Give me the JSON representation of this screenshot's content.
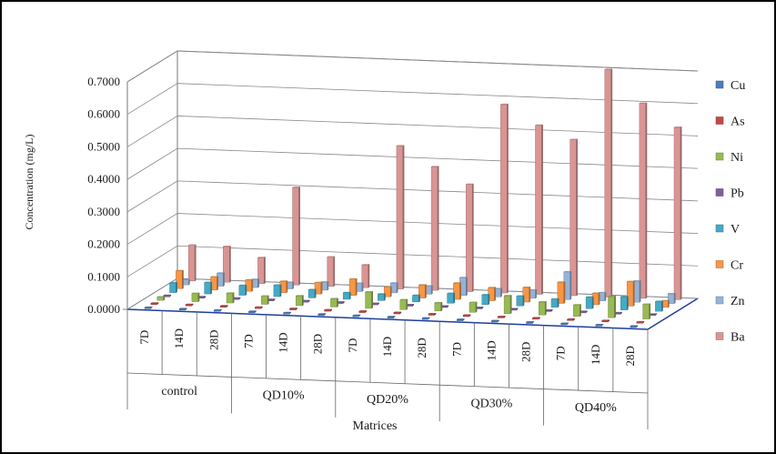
{
  "chart_data": {
    "type": "bar",
    "ylabel": "Concentration (mg/L)",
    "xlabel": "Matrices",
    "ylim": [
      0,
      0.7
    ],
    "y_ticks": [
      "0.0000",
      "0.1000",
      "0.2000",
      "0.3000",
      "0.4000",
      "0.5000",
      "0.6000",
      "0.7000"
    ],
    "groups": [
      "control",
      "QD10%",
      "QD20%",
      "QD30%",
      "QD40%"
    ],
    "categories": [
      "7D",
      "14D",
      "28D",
      "7D",
      "14D",
      "28D",
      "7D",
      "14D",
      "28D",
      "7D",
      "14D",
      "28D",
      "7D",
      "14D",
      "28D"
    ],
    "grid": true,
    "legend_position": "right",
    "series": [
      {
        "name": "Cu",
        "color": "#4a7ebb",
        "values": [
          0.002,
          0.002,
          0.002,
          0.002,
          0.002,
          0.002,
          0.002,
          0.002,
          0.002,
          0.002,
          0.002,
          0.002,
          0.002,
          0.002,
          0.002
        ]
      },
      {
        "name": "As",
        "color": "#be4b48",
        "values": [
          0.003,
          0.003,
          0.003,
          0.003,
          0.003,
          0.003,
          0.003,
          0.003,
          0.003,
          0.003,
          0.003,
          0.003,
          0.003,
          0.003,
          0.003
        ]
      },
      {
        "name": "Ni",
        "color": "#98b954",
        "values": [
          0.01,
          0.025,
          0.03,
          0.025,
          0.03,
          0.025,
          0.05,
          0.03,
          0.025,
          0.03,
          0.055,
          0.04,
          0.035,
          0.065,
          0.045
        ]
      },
      {
        "name": "Pb",
        "color": "#7d60a0",
        "values": [
          0.003,
          0.003,
          0.003,
          0.003,
          0.003,
          0.003,
          0.003,
          0.003,
          0.003,
          0.003,
          0.003,
          0.003,
          0.003,
          0.003,
          0.003
        ]
      },
      {
        "name": "V",
        "color": "#46aac5",
        "values": [
          0.03,
          0.035,
          0.03,
          0.035,
          0.025,
          0.02,
          0.02,
          0.02,
          0.03,
          0.03,
          0.03,
          0.025,
          0.035,
          0.04,
          0.03
        ]
      },
      {
        "name": "Cr",
        "color": "#f79646",
        "values": [
          0.055,
          0.04,
          0.035,
          0.035,
          0.035,
          0.05,
          0.03,
          0.04,
          0.05,
          0.04,
          0.045,
          0.065,
          0.035,
          0.075,
          0.02
        ]
      },
      {
        "name": "Zn",
        "color": "#95b3d7",
        "values": [
          0.015,
          0.04,
          0.025,
          0.02,
          0.025,
          0.025,
          0.03,
          0.025,
          0.055,
          0.025,
          0.025,
          0.085,
          0.025,
          0.065,
          0.03
        ]
      },
      {
        "name": "Ba",
        "color": "#d99594",
        "values": [
          0.11,
          0.11,
          0.08,
          0.3,
          0.09,
          0.07,
          0.44,
          0.38,
          0.33,
          0.58,
          0.52,
          0.48,
          0.7,
          0.6,
          0.53
        ]
      }
    ]
  }
}
